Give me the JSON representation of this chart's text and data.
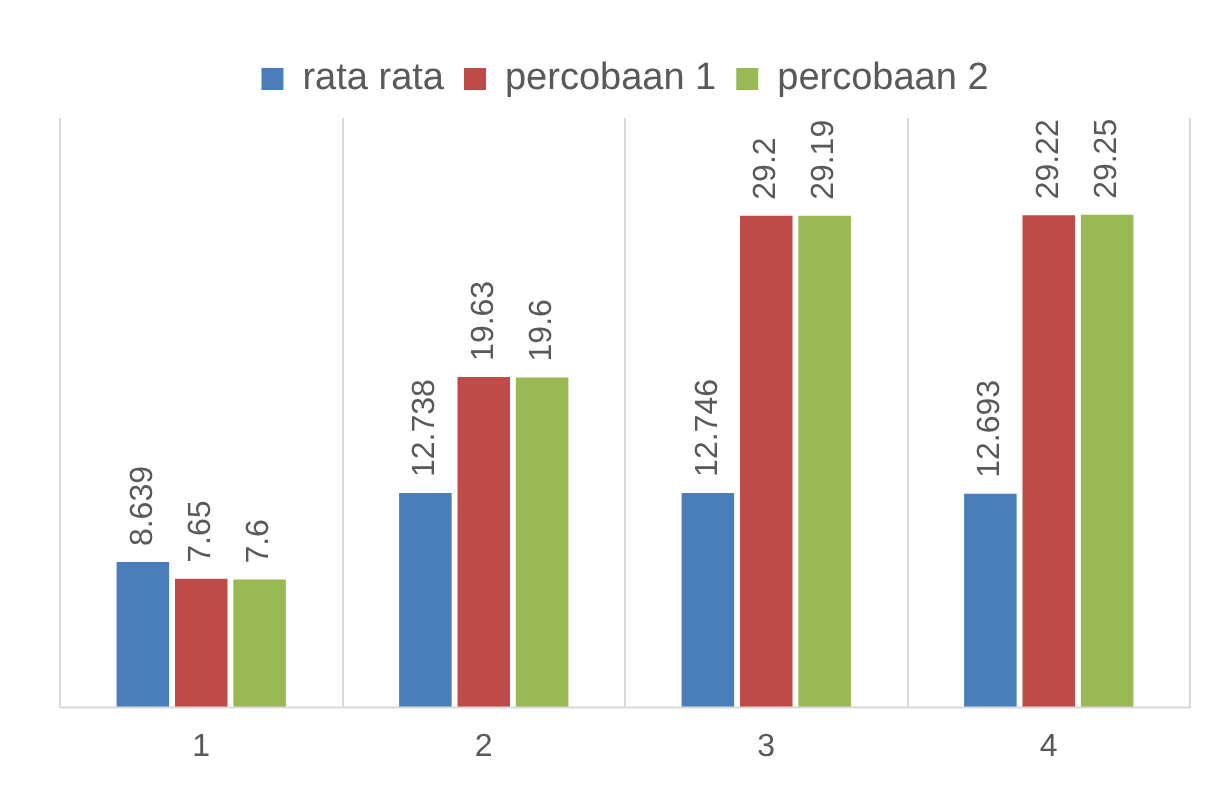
{
  "chart_data": {
    "type": "bar",
    "categories": [
      "1",
      "2",
      "3",
      "4"
    ],
    "series": [
      {
        "name": "rata rata",
        "color": "#4a7ebb",
        "values": [
          8.639,
          12.738,
          12.746,
          12.693
        ]
      },
      {
        "name": "percobaan 1",
        "color": "#be4b48",
        "values": [
          7.65,
          19.63,
          29.2,
          29.22
        ]
      },
      {
        "name": "percobaan 2",
        "color": "#98b954",
        "values": [
          7.6,
          19.6,
          29.19,
          29.25
        ]
      }
    ],
    "ylim": [
      0,
      35
    ],
    "data_labels": true,
    "legend": "top",
    "grid": "x",
    "tick_labels": "x"
  }
}
